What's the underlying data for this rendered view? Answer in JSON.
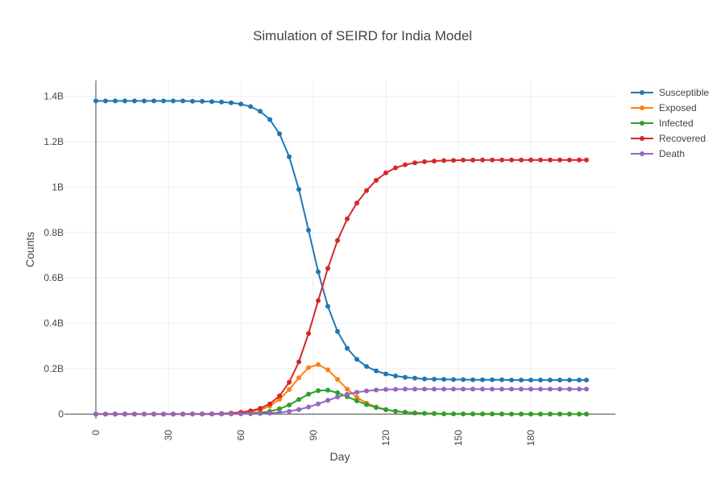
{
  "chart_data": {
    "type": "line",
    "title": "Simulation of SEIRD for India Model",
    "xlabel": "Day",
    "ylabel": "Counts",
    "xlim": [
      -13,
      215
    ],
    "ylim": [
      -0.02,
      1.47
    ],
    "x_ticks": [
      0,
      30,
      60,
      90,
      120,
      150,
      180
    ],
    "y_ticks": [
      {
        "value": 0,
        "label": "0"
      },
      {
        "value": 0.2,
        "label": "0.2B"
      },
      {
        "value": 0.4,
        "label": "0.4B"
      },
      {
        "value": 0.6,
        "label": "0.6B"
      },
      {
        "value": 0.8,
        "label": "0.8B"
      },
      {
        "value": 1.0,
        "label": "1B"
      },
      {
        "value": 1.2,
        "label": "1.2B"
      },
      {
        "value": 1.4,
        "label": "1.4B"
      }
    ],
    "y_unit": "billions",
    "grid": true,
    "legend_position": "top-right",
    "markers": true,
    "x": [
      0,
      4,
      8,
      12,
      16,
      20,
      24,
      28,
      32,
      36,
      40,
      44,
      48,
      52,
      56,
      60,
      64,
      68,
      72,
      76,
      80,
      84,
      88,
      92,
      96,
      100,
      104,
      108,
      112,
      116,
      120,
      124,
      128,
      132,
      136,
      140,
      144,
      148,
      152,
      156,
      160,
      164,
      168,
      172,
      176,
      180,
      184,
      188,
      192,
      196,
      200,
      203
    ],
    "series": [
      {
        "name": "Susceptible",
        "color": "#1f77b4",
        "values": [
          1.38,
          1.38,
          1.38,
          1.38,
          1.38,
          1.38,
          1.38,
          1.38,
          1.38,
          1.38,
          1.379,
          1.378,
          1.377,
          1.375,
          1.372,
          1.366,
          1.355,
          1.334,
          1.298,
          1.235,
          1.134,
          0.99,
          0.81,
          0.627,
          0.475,
          0.364,
          0.29,
          0.241,
          0.21,
          0.19,
          0.177,
          0.168,
          0.162,
          0.158,
          0.155,
          0.154,
          0.153,
          0.152,
          0.152,
          0.151,
          0.151,
          0.151,
          0.151,
          0.15,
          0.15,
          0.15,
          0.15,
          0.15,
          0.15,
          0.15,
          0.15,
          0.15
        ]
      },
      {
        "name": "Exposed",
        "color": "#ff7f0e",
        "values": [
          0,
          0,
          0,
          0,
          0,
          0,
          0,
          0,
          0,
          0,
          0.0001,
          0.0002,
          0.0005,
          0.001,
          0.002,
          0.004,
          0.009,
          0.018,
          0.035,
          0.065,
          0.108,
          0.16,
          0.205,
          0.218,
          0.195,
          0.153,
          0.11,
          0.074,
          0.048,
          0.031,
          0.02,
          0.012,
          0.008,
          0.005,
          0.003,
          0.002,
          0.001,
          0.001,
          0.0005,
          0.0003,
          0.0002,
          0.0001,
          0.0001,
          0,
          0,
          0,
          0,
          0,
          0,
          0,
          0,
          0
        ]
      },
      {
        "name": "Infected",
        "color": "#2ca02c",
        "values": [
          0,
          0,
          0,
          0,
          0,
          0,
          0,
          0,
          0,
          0,
          0,
          0.0001,
          0.0002,
          0.0004,
          0.0008,
          0.0016,
          0.003,
          0.006,
          0.012,
          0.023,
          0.04,
          0.064,
          0.088,
          0.103,
          0.105,
          0.094,
          0.077,
          0.058,
          0.042,
          0.029,
          0.019,
          0.013,
          0.008,
          0.005,
          0.003,
          0.002,
          0.001,
          0.001,
          0.0005,
          0.0003,
          0.0002,
          0.0001,
          0,
          0,
          0,
          0,
          0,
          0,
          0,
          0,
          0,
          0
        ]
      },
      {
        "name": "Recovered",
        "color": "#d62728",
        "values": [
          0,
          0,
          0,
          0,
          0,
          0,
          0,
          0,
          0,
          0,
          0.0003,
          0.0007,
          0.001,
          0.002,
          0.004,
          0.008,
          0.014,
          0.025,
          0.045,
          0.08,
          0.14,
          0.23,
          0.355,
          0.5,
          0.642,
          0.765,
          0.86,
          0.93,
          0.985,
          1.03,
          1.063,
          1.085,
          1.099,
          1.107,
          1.112,
          1.115,
          1.117,
          1.118,
          1.119,
          1.119,
          1.12,
          1.12,
          1.12,
          1.12,
          1.12,
          1.12,
          1.12,
          1.12,
          1.12,
          1.12,
          1.12,
          1.12
        ]
      },
      {
        "name": "Death",
        "color": "#9467bd",
        "values": [
          0,
          0,
          0,
          0,
          0,
          0,
          0,
          0,
          0,
          0,
          0,
          0,
          0,
          0.0002,
          0.0004,
          0.0008,
          0.0014,
          0.0025,
          0.004,
          0.007,
          0.012,
          0.02,
          0.031,
          0.045,
          0.06,
          0.075,
          0.087,
          0.096,
          0.102,
          0.106,
          0.108,
          0.109,
          0.11,
          0.11,
          0.11,
          0.11,
          0.11,
          0.11,
          0.11,
          0.11,
          0.11,
          0.11,
          0.11,
          0.11,
          0.11,
          0.11,
          0.11,
          0.11,
          0.11,
          0.11,
          0.11,
          0.11
        ]
      }
    ]
  }
}
